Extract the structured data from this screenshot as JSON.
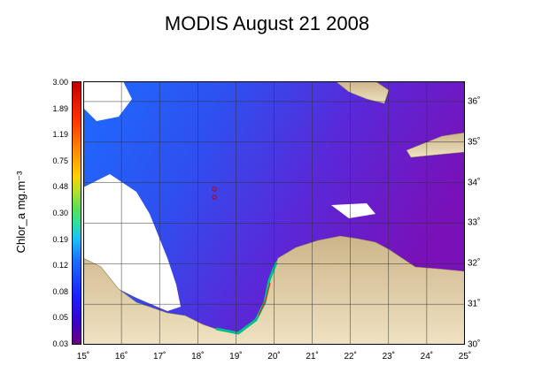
{
  "title": "MODIS August 21 2008",
  "colorbar": {
    "label": "Chlor_a  mg.m⁻³",
    "ticks": [
      "3.00",
      "1.89",
      "1.19",
      "0.75",
      "0.48",
      "0.30",
      "0.19",
      "0.12",
      "0.08",
      "0.05",
      "0.03"
    ]
  },
  "axes": {
    "x_ticks": [
      "15˚",
      "16˚",
      "17˚",
      "18˚",
      "19˚",
      "20˚",
      "21˚",
      "22˚",
      "23˚",
      "24˚",
      "25˚"
    ],
    "y_ticks": [
      "36˚",
      "35˚",
      "34˚",
      "33˚",
      "32˚",
      "31˚",
      "30˚"
    ],
    "x_range": [
      15,
      25
    ],
    "y_range": [
      30,
      36.5
    ]
  },
  "colors": {
    "sea": "#3a2fd8",
    "land": "#e6d3a3",
    "coast_high": "#00c08a"
  }
}
